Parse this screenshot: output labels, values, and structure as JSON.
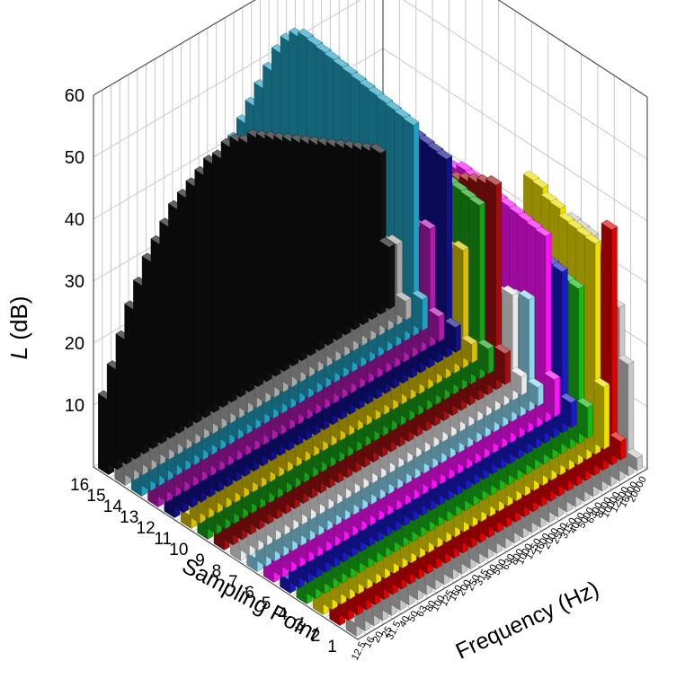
{
  "chart_data": {
    "type": "bar3d",
    "title": "",
    "zlabel_italic": "L",
    "zlabel_rest": " (dB)",
    "xlabel": "Frequency (Hz)",
    "ylabel": "Sampling Point",
    "zlim": [
      0,
      60
    ],
    "z_ticks": [
      "10",
      "20",
      "30",
      "40",
      "50",
      "60"
    ],
    "frequencies": [
      "12.5",
      "16",
      "20",
      "25",
      "31.5",
      "40",
      "50",
      "63",
      "80",
      "100",
      "125",
      "160",
      "200",
      "250",
      "315",
      "400",
      "500",
      "630",
      "800",
      "1000",
      "1250",
      "1600",
      "2000",
      "2500",
      "3150",
      "4000",
      "5000",
      "6300",
      "8000",
      "10000",
      "12500",
      "16000",
      "20000"
    ],
    "sampling_points": [
      "1",
      "2",
      "3",
      "4",
      "5",
      "6",
      "7",
      "8",
      "9",
      "10",
      "11",
      "12",
      "13",
      "14",
      "15",
      "16"
    ],
    "grid": true,
    "series": [
      {
        "point": "1",
        "color": "#c8c8c8",
        "values": [
          2,
          5,
          15,
          18,
          20,
          22,
          25,
          27,
          29,
          30,
          32,
          34,
          36,
          38,
          40,
          42,
          44,
          45,
          46,
          47,
          48,
          48,
          48,
          48,
          47,
          46,
          44,
          42,
          39,
          35,
          28,
          18,
          2
        ]
      },
      {
        "point": "2",
        "color": "#e00000",
        "values": [
          3,
          6,
          10,
          14,
          17,
          20,
          22,
          24,
          26,
          28,
          29,
          31,
          32,
          33,
          34,
          35,
          36,
          37,
          38,
          38,
          38,
          38,
          38,
          38,
          37,
          36,
          35,
          34,
          33,
          32,
          35,
          38,
          3
        ]
      },
      {
        "point": "3",
        "color": "#f0e000",
        "values": [
          4,
          8,
          12,
          16,
          19,
          22,
          24,
          26,
          28,
          30,
          32,
          34,
          35,
          36,
          38,
          40,
          41,
          42,
          43,
          44,
          45,
          46,
          44,
          43,
          50,
          48,
          45,
          43,
          40,
          38,
          36,
          34,
          10
        ]
      },
      {
        "point": "4",
        "color": "#18b818",
        "values": [
          3,
          6,
          9,
          12,
          15,
          17,
          19,
          21,
          23,
          25,
          27,
          28,
          29,
          30,
          31,
          32,
          33,
          34,
          35,
          35,
          36,
          36,
          36,
          35,
          34,
          33,
          32,
          31,
          30,
          29,
          27,
          25,
          5
        ]
      },
      {
        "point": "5",
        "color": "#1a1ac8",
        "values": [
          2,
          5,
          12,
          18,
          22,
          26,
          27,
          28,
          30,
          32,
          33,
          34,
          35,
          36,
          36,
          38,
          40,
          40,
          40,
          39,
          38,
          38,
          37,
          36,
          35,
          34,
          33,
          32,
          31,
          30,
          28,
          26,
          4
        ]
      },
      {
        "point": "6",
        "color": "#ff10ff",
        "values": [
          5,
          10,
          16,
          20,
          23,
          25,
          27,
          29,
          31,
          33,
          35,
          37,
          39,
          41,
          43,
          45,
          47,
          48,
          49,
          50,
          50,
          49,
          48,
          46,
          44,
          42,
          40,
          38,
          36,
          34,
          32,
          30,
          6
        ]
      },
      {
        "point": "7",
        "color": "#8ad8f0",
        "values": [
          2,
          6,
          10,
          13,
          16,
          19,
          21,
          23,
          25,
          26,
          27,
          28,
          29,
          30,
          30,
          31,
          31,
          31,
          30,
          30,
          29,
          28,
          27,
          26,
          25,
          24,
          23,
          22,
          21,
          20,
          19,
          18,
          3
        ]
      },
      {
        "point": "8",
        "color": "#e8e8e8",
        "values": [
          3,
          7,
          11,
          15,
          18,
          21,
          23,
          25,
          26,
          27,
          28,
          29,
          30,
          30,
          31,
          31,
          31,
          30,
          30,
          29,
          28,
          27,
          26,
          25,
          24,
          23,
          22,
          21,
          20,
          19,
          18,
          17,
          3
        ]
      },
      {
        "point": "9",
        "color": "#a01010",
        "values": [
          4,
          8,
          13,
          17,
          20,
          23,
          26,
          28,
          30,
          32,
          34,
          36,
          38,
          40,
          42,
          44,
          45,
          46,
          46,
          45,
          44,
          43,
          42,
          41,
          40,
          39,
          38,
          37,
          36,
          35,
          34,
          33,
          5
        ]
      },
      {
        "point": "10",
        "color": "#18a018",
        "values": [
          3,
          7,
          12,
          16,
          20,
          24,
          27,
          30,
          33,
          36,
          39,
          42,
          45,
          47,
          49,
          51,
          52,
          53,
          53,
          52,
          50,
          48,
          46,
          44,
          42,
          40,
          38,
          36,
          34,
          32,
          30,
          28,
          4
        ]
      },
      {
        "point": "11",
        "color": "#d8c000",
        "values": [
          2,
          6,
          10,
          14,
          18,
          21,
          24,
          26,
          28,
          29,
          30,
          31,
          32,
          32,
          33,
          33,
          33,
          32,
          32,
          31,
          30,
          29,
          28,
          27,
          26,
          25,
          24,
          23,
          22,
          21,
          20,
          19,
          3
        ]
      },
      {
        "point": "12",
        "color": "#10108c",
        "values": [
          3,
          8,
          14,
          19,
          24,
          28,
          32,
          35,
          38,
          41,
          43,
          45,
          47,
          49,
          51,
          53,
          54,
          55,
          55,
          54,
          53,
          52,
          50,
          48,
          46,
          44,
          42,
          40,
          38,
          36,
          34,
          32,
          4
        ]
      },
      {
        "point": "13",
        "color": "#b018b0",
        "values": [
          4,
          9,
          14,
          18,
          22,
          25,
          27,
          29,
          30,
          31,
          32,
          33,
          33,
          34,
          34,
          34,
          33,
          33,
          32,
          31,
          30,
          29,
          28,
          27,
          26,
          25,
          24,
          23,
          22,
          21,
          20,
          19,
          4
        ]
      },
      {
        "point": "14",
        "color": "#20a0c0",
        "values": [
          5,
          10,
          16,
          21,
          26,
          30,
          34,
          37,
          40,
          43,
          46,
          48,
          50,
          52,
          54,
          56,
          58,
          59,
          59,
          58,
          56,
          54,
          52,
          50,
          48,
          46,
          44,
          42,
          40,
          38,
          36,
          34,
          5
        ]
      },
      {
        "point": "15",
        "color": "#a8a8a8",
        "values": [
          3,
          7,
          11,
          14,
          17,
          19,
          21,
          23,
          24,
          25,
          26,
          27,
          27,
          28,
          28,
          28,
          27,
          27,
          26,
          25,
          24,
          23,
          22,
          21,
          20,
          19,
          18,
          17,
          16,
          15,
          14,
          13,
          3
        ]
      },
      {
        "point": "16",
        "color": "#101010",
        "values": [
          12,
          16,
          20,
          24,
          27,
          30,
          32,
          34,
          36,
          37,
          38,
          39,
          40,
          40,
          41,
          41,
          40,
          40,
          39,
          38,
          37,
          36,
          35,
          34,
          33,
          32,
          31,
          30,
          29,
          28,
          27,
          26,
          10
        ]
      }
    ]
  }
}
